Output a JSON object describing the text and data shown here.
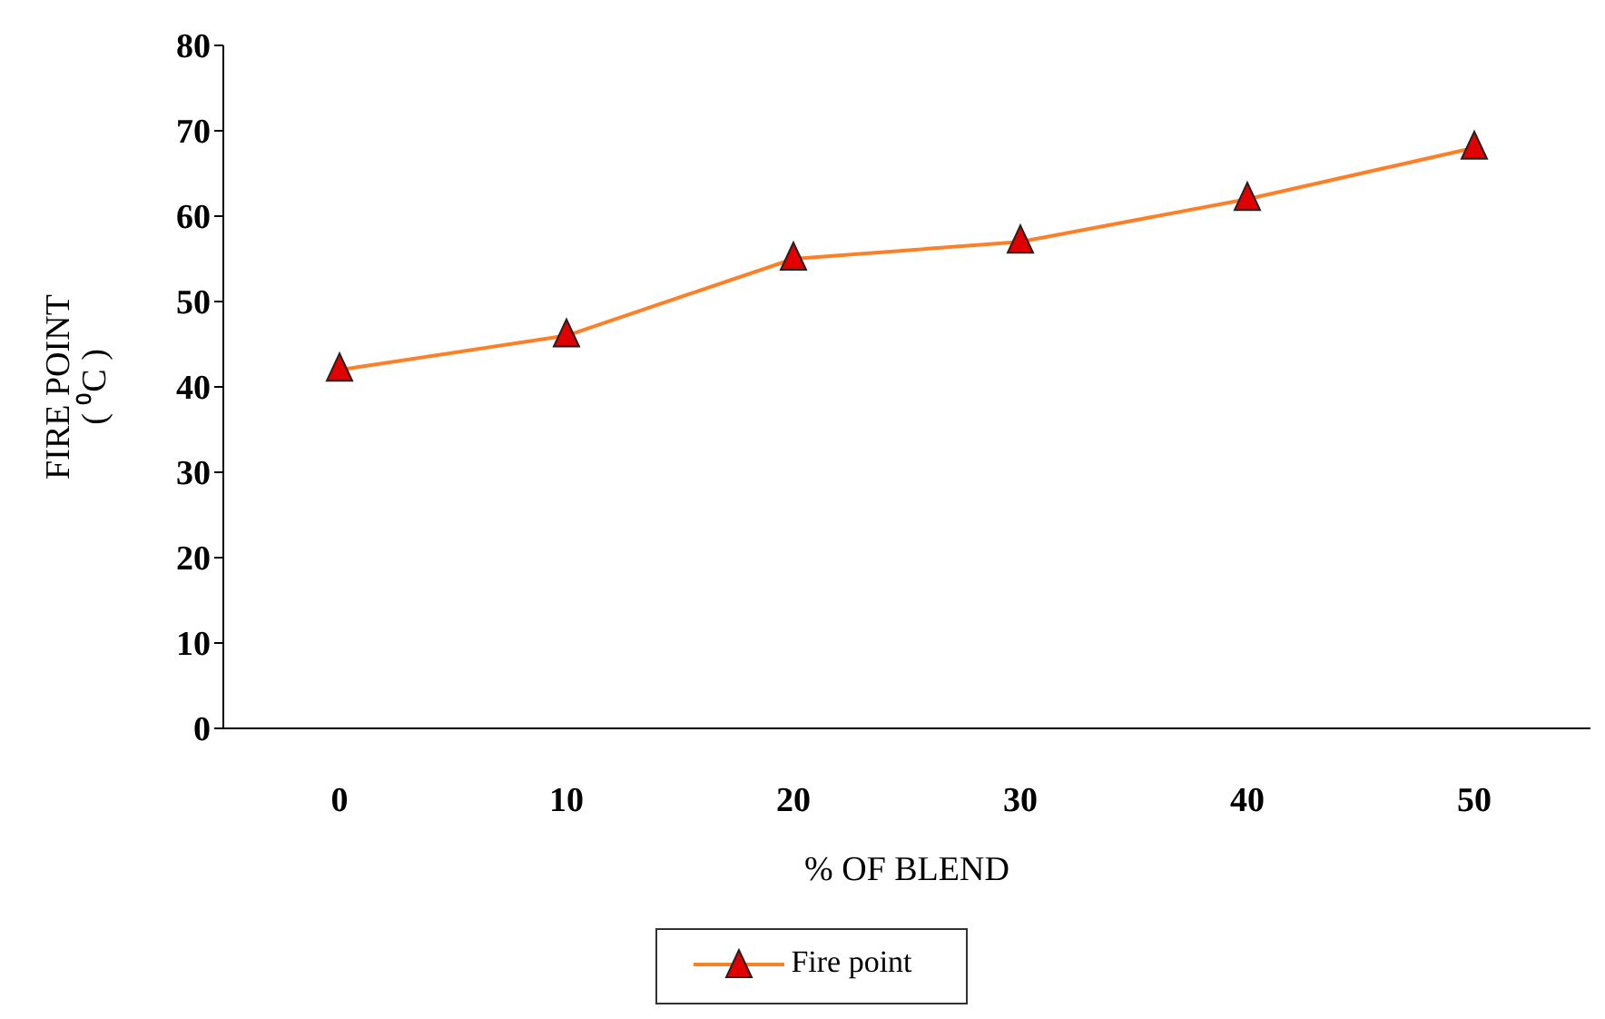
{
  "chart_data": {
    "type": "line",
    "xlabel": "% OF BLEND",
    "ylabel": "FIRE POINT\n( ⁰C )",
    "categories": [
      "0",
      "10",
      "20",
      "30",
      "40",
      "50"
    ],
    "series": [
      {
        "name": "Fire point",
        "color": "#ff7f27",
        "values": [
          42,
          46,
          55,
          57,
          62,
          68
        ]
      }
    ],
    "ylim": [
      0,
      80
    ],
    "yticks": [
      0,
      10,
      20,
      30,
      40,
      50,
      60,
      70,
      80
    ],
    "grid": false,
    "legend": "bottom",
    "marker": "triangle",
    "line_style": "solid"
  }
}
